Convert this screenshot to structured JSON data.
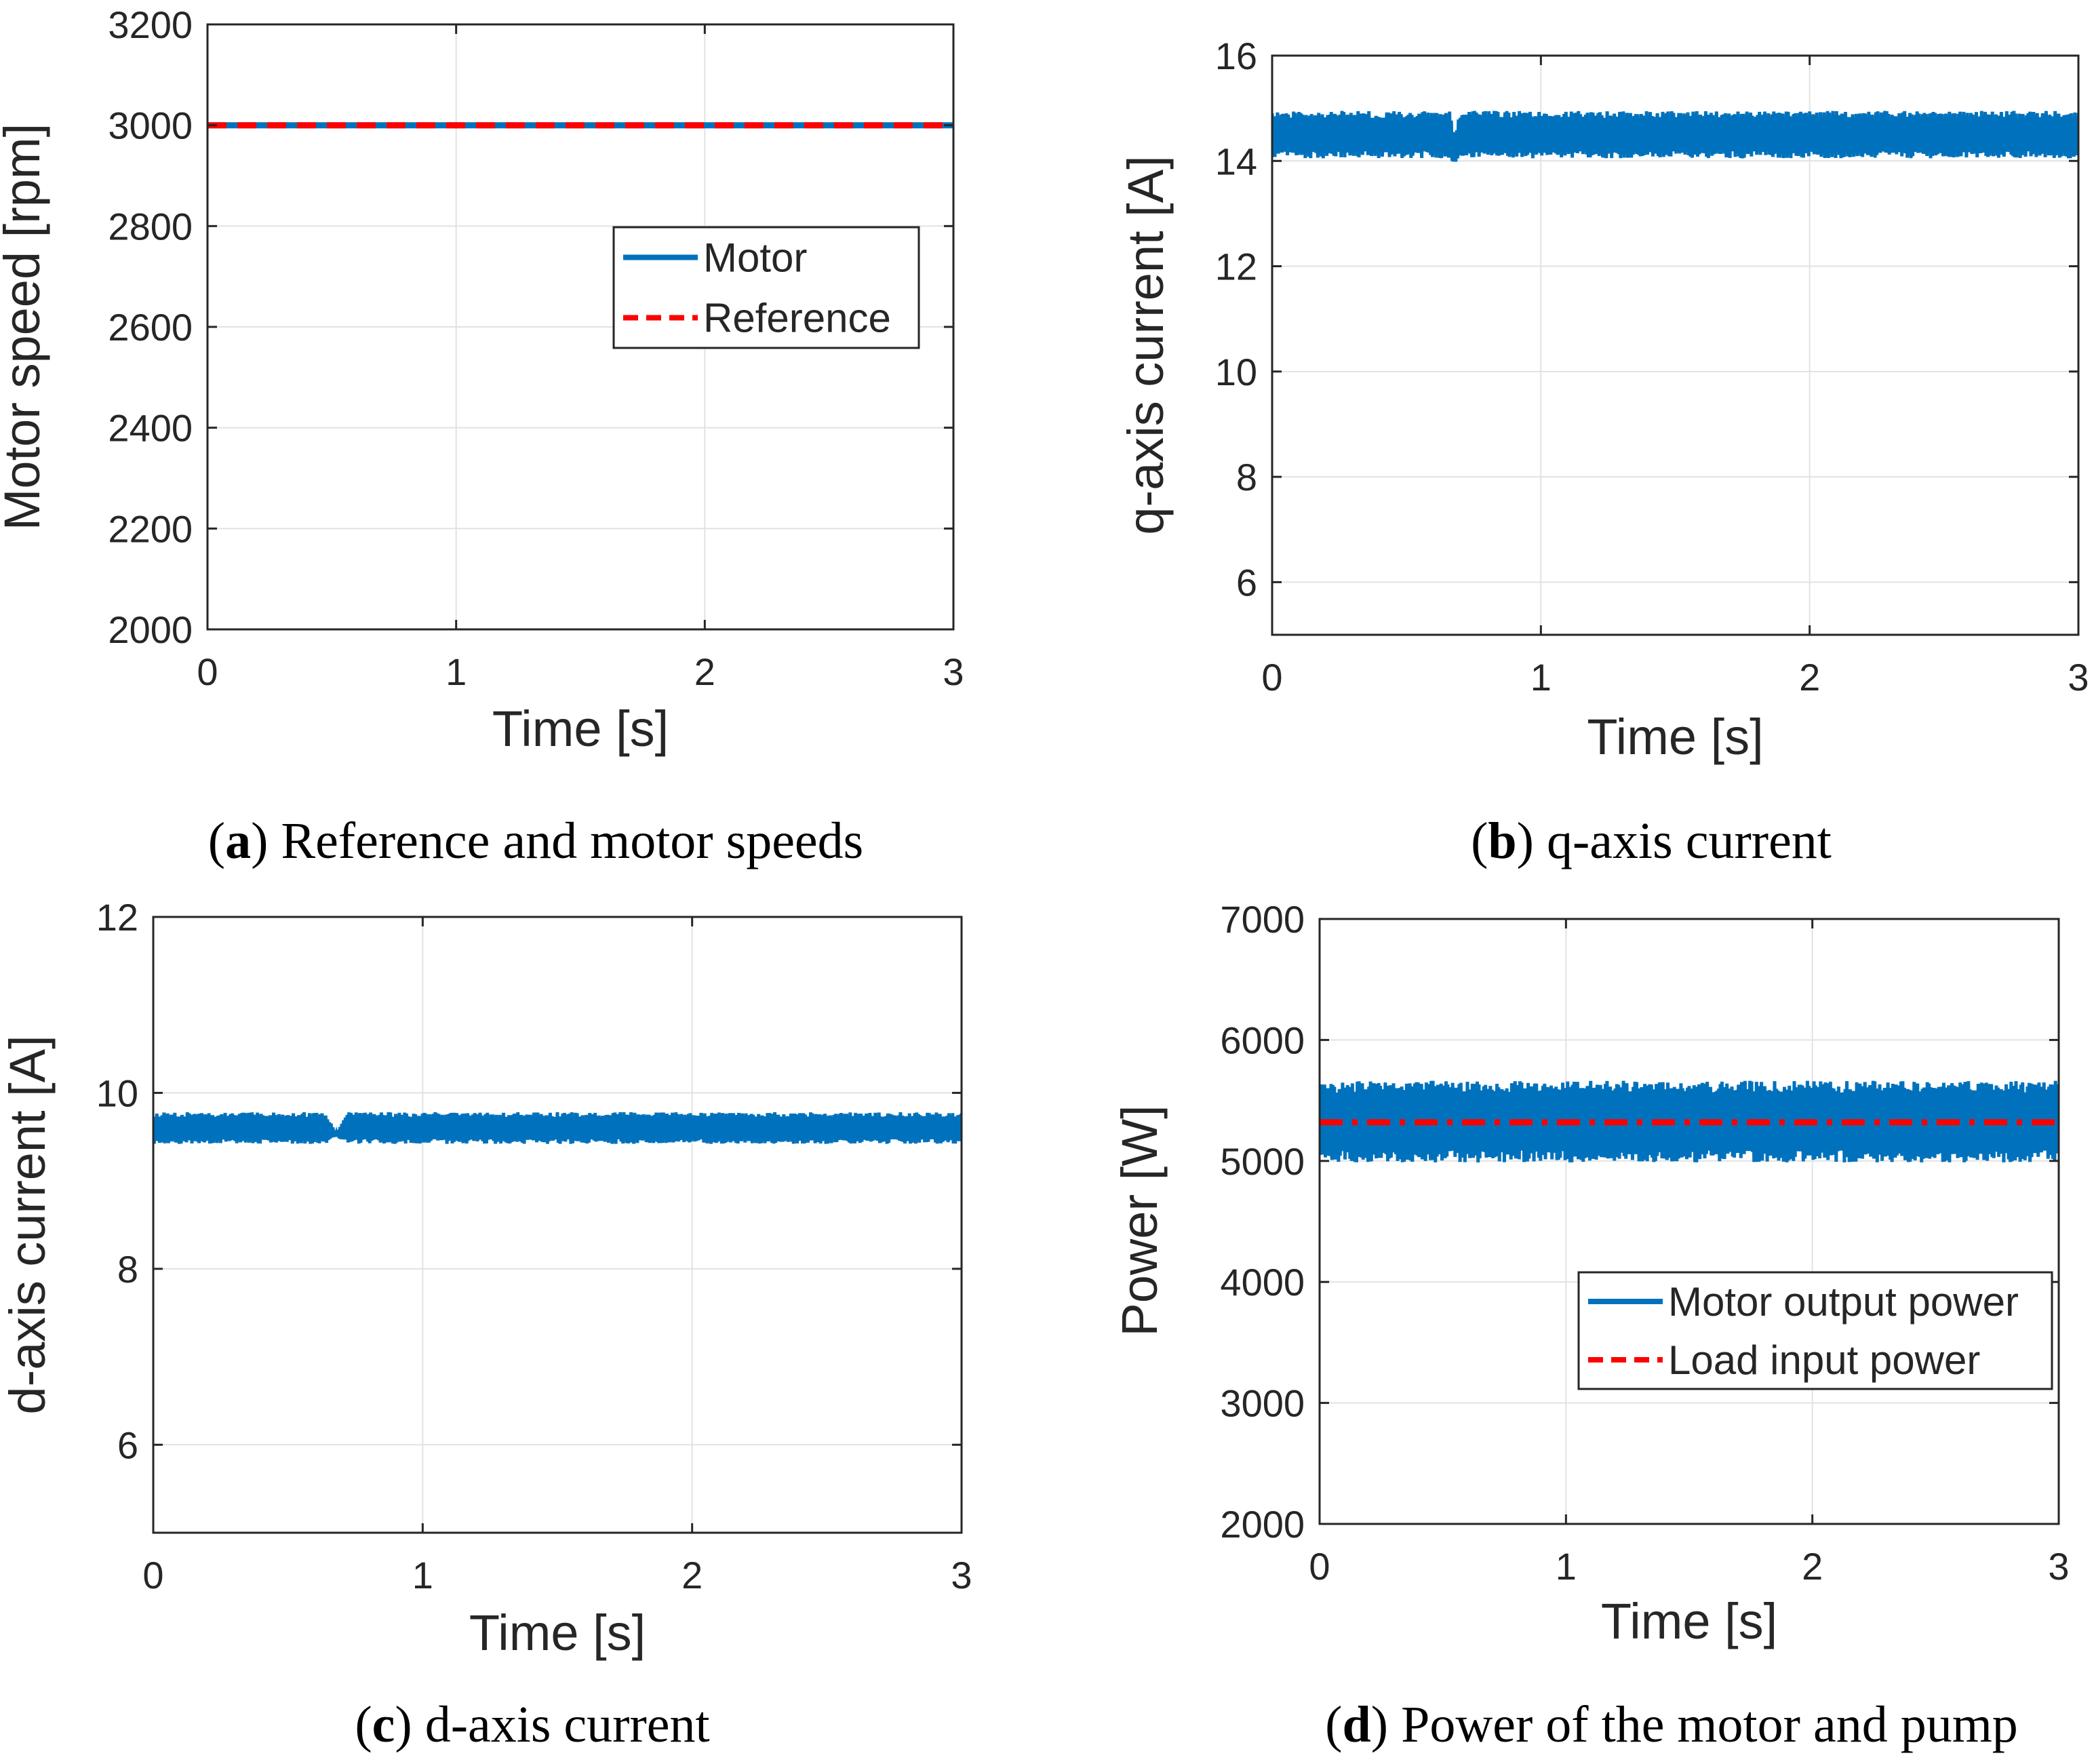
{
  "chart_data": [
    {
      "panel": "a",
      "type": "line",
      "caption": {
        "letter": "a",
        "text": "Reference and motor speeds"
      },
      "xlabel": "Time [s]",
      "ylabel": "Motor speed [rpm]",
      "xlim": [
        0,
        3
      ],
      "ylim": [
        2000,
        3200
      ],
      "xticks": [
        0,
        1,
        2,
        3
      ],
      "yticks": [
        2000,
        2200,
        2400,
        2600,
        2800,
        3000,
        3200
      ],
      "grid": true,
      "legend": {
        "placement": "upper-right"
      },
      "series": [
        {
          "name": "Motor",
          "color": "#0072bd",
          "style": "solid",
          "x": [
            0,
            3
          ],
          "y": [
            3000,
            3000
          ]
        },
        {
          "name": "Reference",
          "color": "#ff0000",
          "style": "dashed",
          "x": [
            0,
            3
          ],
          "y": [
            3000,
            3000
          ]
        }
      ]
    },
    {
      "panel": "b",
      "type": "line",
      "caption": {
        "letter": "b",
        "text": "q-axis current"
      },
      "xlabel": "Time [s]",
      "ylabel": "q-axis current [A]",
      "xlim": [
        0,
        3
      ],
      "ylim": [
        5,
        16
      ],
      "xticks": [
        0,
        1,
        2,
        3
      ],
      "yticks": [
        6,
        8,
        10,
        12,
        14,
        16
      ],
      "grid": true,
      "series": [
        {
          "color": "#0072bd",
          "style": "oscillating-band",
          "x": [
            0,
            0.66,
            0.68,
            0.7,
            3
          ],
          "y_min": [
            14.0,
            14.0,
            13.9,
            14.0,
            14.0
          ],
          "y_max": [
            15.0,
            15.0,
            14.5,
            15.0,
            15.0
          ]
        }
      ]
    },
    {
      "panel": "c",
      "type": "line",
      "caption": {
        "letter": "c",
        "text": "d-axis current"
      },
      "xlabel": "Time [s]",
      "ylabel": "d-axis current [A]",
      "xlim": [
        0,
        3
      ],
      "ylim": [
        5,
        12
      ],
      "xticks": [
        0,
        1,
        2,
        3
      ],
      "yticks": [
        6,
        8,
        10,
        12
      ],
      "grid": true,
      "series": [
        {
          "color": "#0072bd",
          "style": "oscillating-band",
          "x": [
            0,
            0.64,
            0.68,
            0.72,
            3
          ],
          "y_min": [
            9.4,
            9.4,
            9.5,
            9.4,
            9.4
          ],
          "y_max": [
            9.8,
            9.8,
            9.55,
            9.8,
            9.8
          ]
        }
      ]
    },
    {
      "panel": "d",
      "type": "line",
      "caption": {
        "letter": "d",
        "text": "Power of the motor and pump"
      },
      "xlabel": "Time [s]",
      "ylabel": "Power [W]",
      "xlim": [
        0,
        3
      ],
      "ylim": [
        2000,
        7000
      ],
      "xticks": [
        0,
        1,
        2,
        3
      ],
      "yticks": [
        2000,
        3000,
        4000,
        5000,
        6000,
        7000
      ],
      "grid": true,
      "legend": {
        "placement": "lower-right"
      },
      "series": [
        {
          "name": "Motor output power",
          "color": "#0072bd",
          "style": "oscillating-band",
          "x": [
            0,
            0.66,
            0.68,
            0.72,
            3
          ],
          "y_min": [
            4950,
            4950,
            5000,
            4950,
            4950
          ],
          "y_max": [
            5700,
            5700,
            5700,
            5700,
            5700
          ]
        },
        {
          "name": "Load input power",
          "color": "#ff0000",
          "style": "dash-dot",
          "x": [
            0,
            3
          ],
          "y": [
            5320,
            5320
          ]
        }
      ]
    }
  ]
}
